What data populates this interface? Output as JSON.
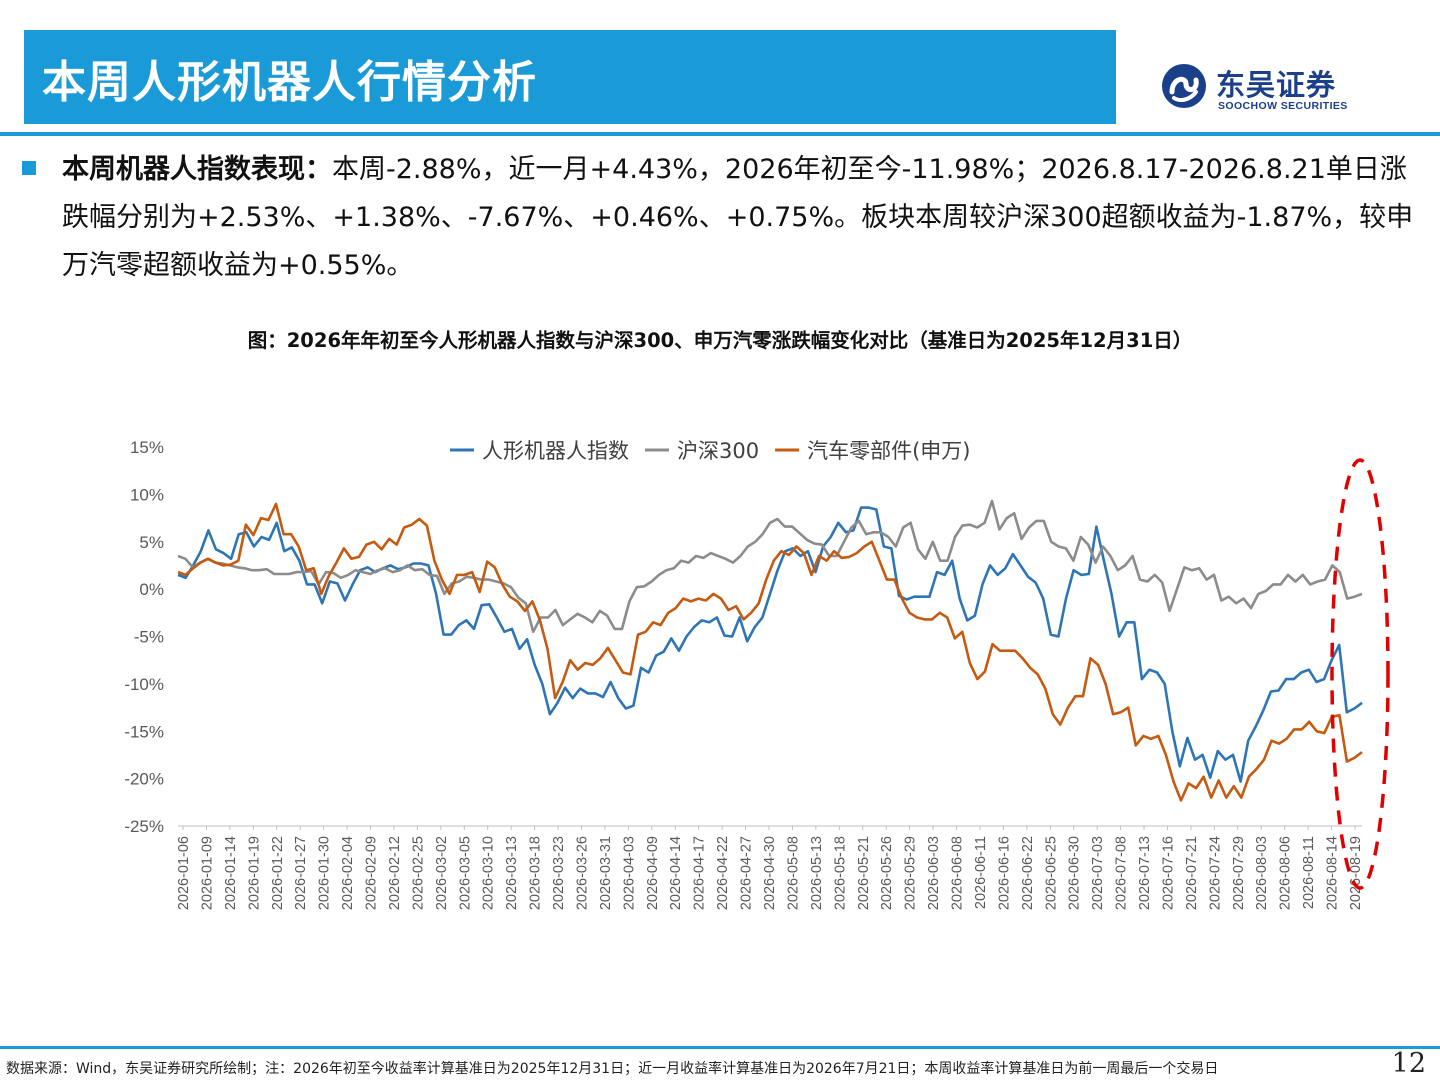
{
  "header": {
    "title": "本周人形机器人行情分析",
    "logo_cn": "东吴证券",
    "logo_en": "SOOCHOW SECURITIES"
  },
  "summary": {
    "label": "本周机器人指数表现：",
    "text": "本周-2.88%，近一月+4.43%，2026年初至今-11.98%；2026.8.17-2026.8.21单日涨跌幅分别为+2.53%、+1.38%、-7.67%、+0.46%、+0.75%。板块本周较沪深300超额收益为-1.87%，较申万汽零超额收益为+0.55%。"
  },
  "figure_caption": "图：2026年年初至今人形机器人指数与沪深300、申万汽零涨跌幅变化对比（基准日为2025年12月31日）",
  "footer": {
    "source": "数据来源：Wind，东吴证券研究所绘制；注：2026年初至今收益率计算基准日为2025年12月31日；近一月收益率计算基准日为2026年7月21日；本周收益率计算基准日为前一周最后一个交易日",
    "page": "12"
  },
  "colors": {
    "brand": "#1a9ad6",
    "robot": "#2e75b6",
    "hs300": "#8c8c8c",
    "auto": "#c55a11",
    "highlight": "#e00000"
  },
  "chart_data": {
    "type": "line",
    "y_unit": "%",
    "ylim": [
      -25,
      15
    ],
    "yticks": [
      15,
      10,
      5,
      0,
      -5,
      -10,
      -15,
      -20,
      -25
    ],
    "ytick_labels": [
      "15%",
      "10%",
      "5%",
      "0%",
      "-5%",
      "-10%",
      "-15%",
      "-20%",
      "-25%"
    ],
    "legend_position": "top",
    "grid": false,
    "xtick_labels": [
      "2026-01-06",
      "2026-01-09",
      "2026-01-14",
      "2026-01-19",
      "2026-01-22",
      "2026-01-27",
      "2026-01-30",
      "2026-02-04",
      "2026-02-09",
      "2026-02-12",
      "2026-02-25",
      "2026-03-02",
      "2026-03-05",
      "2026-03-10",
      "2026-03-13",
      "2026-03-18",
      "2026-03-23",
      "2026-03-26",
      "2026-03-31",
      "2026-04-03",
      "2026-04-09",
      "2026-04-14",
      "2026-04-17",
      "2026-04-22",
      "2026-04-27",
      "2026-04-30",
      "2026-05-08",
      "2026-05-13",
      "2026-05-18",
      "2026-05-21",
      "2026-05-26",
      "2026-05-29",
      "2026-06-03",
      "2026-06-08",
      "2026-06-11",
      "2026-06-16",
      "2026-06-22",
      "2026-06-25",
      "2026-06-30",
      "2026-07-03",
      "2026-07-08",
      "2026-07-13",
      "2026-07-16",
      "2026-07-21",
      "2026-07-24",
      "2026-07-29",
      "2026-08-03",
      "2026-08-06",
      "2026-08-11",
      "2026-08-14",
      "2026-08-19"
    ],
    "series": [
      {
        "name": "人形机器人指数",
        "color_key": "robot",
        "values": [
          1.5,
          1.2,
          2.5,
          4,
          6.2,
          4.2,
          3.8,
          3.2,
          5.8,
          6,
          4.5,
          5.5,
          5.2,
          7,
          4,
          4.4,
          3,
          0.5,
          0.5,
          -1.5,
          0.8,
          0.6,
          -1.2,
          0.5,
          2,
          2.3,
          1.8,
          2.2,
          2.5,
          2.1,
          2.3,
          2.7,
          2.7,
          2.5,
          -0.5,
          -4.8,
          -4.8,
          -3.8,
          -3.3,
          -4.2,
          -1.7,
          -1.6,
          -3,
          -4.5,
          -4.2,
          -6.3,
          -5.3,
          -8,
          -10,
          -13.2,
          -12,
          -10.4,
          -11.5,
          -10.5,
          -11,
          -11,
          -11.4,
          -9.8,
          -11.5,
          -12.6,
          -12.3,
          -8.3,
          -8.8,
          -7,
          -6.6,
          -5.2,
          -6.5,
          -5,
          -4,
          -3.3,
          -3.5,
          -3,
          -4.9,
          -5,
          -3,
          -5.5,
          -4,
          -3,
          -0.5,
          2,
          4,
          4.3,
          3.5,
          4,
          1.8,
          4.5,
          5.5,
          7,
          6,
          6.2,
          8.6,
          8.6,
          8.4,
          4.5,
          4.3,
          -0.7,
          -1.1,
          -0.8,
          -0.8,
          -0.8,
          1.8,
          1.5,
          3,
          -1,
          -3.3,
          -2.8,
          0.5,
          2.5,
          1.5,
          2.2,
          3.7,
          2.5,
          1.3,
          0.7,
          -1,
          -4.8,
          -5,
          -1,
          2,
          1.5,
          1.6,
          6.6,
          3,
          -0.5,
          -5,
          -3.5,
          -3.5,
          -9.5,
          -8.5,
          -8.8,
          -10,
          -15,
          -18.7,
          -15.7,
          -18,
          -17.5,
          -19.9,
          -17.1,
          -18,
          -17.5,
          -20.3,
          -16,
          -14.5,
          -12.8,
          -10.8,
          -10.7,
          -9.5,
          -9.5,
          -8.8,
          -8.5,
          -9.8,
          -9.5,
          -7.5,
          -5.9,
          -13,
          -12.6,
          -12
        ]
      },
      {
        "name": "沪深300",
        "color_key": "hs300",
        "values": [
          3.5,
          3.2,
          2.3,
          2.8,
          3.2,
          2.8,
          2.7,
          2.5,
          2.3,
          2.2,
          2,
          2,
          2.1,
          1.6,
          1.6,
          1.6,
          1.8,
          1.8,
          1.9,
          0.5,
          1.8,
          1.7,
          1.2,
          1.5,
          2,
          1.8,
          1.6,
          2,
          2.2,
          1.8,
          2,
          2.5,
          2,
          2.1,
          1.5,
          1.4,
          -0.5,
          0.6,
          0.8,
          1.3,
          1.2,
          1,
          1,
          0.8,
          0.6,
          0.2,
          -0.9,
          -1.5,
          -4.5,
          -3,
          -3,
          -2.2,
          -3.8,
          -3.2,
          -2.6,
          -3,
          -3.5,
          -2.3,
          -2.8,
          -4.2,
          -4.2,
          -1.3,
          0.2,
          0.3,
          0.8,
          1.5,
          2,
          2.2,
          3,
          2.8,
          3.5,
          3.3,
          3.8,
          3.5,
          3.2,
          2.8,
          3.5,
          4.5,
          5,
          5.8,
          7,
          7.4,
          6.6,
          6.6,
          5.9,
          5.2,
          4.8,
          4.7,
          3.5,
          3.5,
          5,
          6.5,
          7.2,
          5.8,
          6,
          6,
          5.5,
          4.5,
          6.5,
          7,
          4.2,
          3.2,
          5,
          3,
          3,
          5.5,
          6.7,
          6.8,
          6.5,
          7,
          9.3,
          6.3,
          7.5,
          8,
          5.3,
          6.5,
          7.2,
          7.2,
          5,
          4.5,
          4.3,
          3,
          5.5,
          4.7,
          2.8,
          4.5,
          3.5,
          2,
          2.5,
          3.5,
          1,
          0.8,
          1.5,
          0.7,
          -2.3,
          0,
          2.3,
          2,
          2.2,
          1,
          1.5,
          -1.2,
          -0.8,
          -1.5,
          -1,
          -2,
          -0.5,
          -0.2,
          0.5,
          0.5,
          1.5,
          0.8,
          1.5,
          0.5,
          0.8,
          1,
          2.5,
          1.8,
          -1,
          -0.8,
          -0.5
        ]
      },
      {
        "name": "汽车零部件(申万)",
        "color_key": "auto",
        "values": [
          1.8,
          1.5,
          2.2,
          2.8,
          3.2,
          2.8,
          2.5,
          2.6,
          3,
          6.8,
          5.7,
          7.5,
          7.3,
          9,
          5.8,
          5.8,
          4.5,
          2,
          2.2,
          -0.5,
          1.4,
          2.8,
          4.3,
          3.2,
          3.4,
          4.7,
          5,
          4.2,
          5.3,
          4.7,
          6.5,
          6.8,
          7.4,
          6.7,
          3,
          1,
          -0.5,
          1.5,
          1.5,
          1.8,
          -0.3,
          2.9,
          2.3,
          0.5,
          -0.8,
          -1.3,
          -2.3,
          -1.3,
          -3.3,
          -6.3,
          -11.5,
          -9.8,
          -7.5,
          -8.5,
          -7.8,
          -8,
          -7.3,
          -6.2,
          -7.5,
          -8.8,
          -9,
          -4.8,
          -4.5,
          -3.5,
          -3.8,
          -2.5,
          -2,
          -1,
          -1.3,
          -1,
          -1.2,
          -0.5,
          -1,
          -2.2,
          -1.8,
          -3.2,
          -2.5,
          -1.5,
          1,
          3,
          4,
          3.6,
          4.5,
          3.8,
          1.5,
          3.5,
          3,
          4,
          3.3,
          3.4,
          3.8,
          4.5,
          5,
          3,
          1,
          1,
          -1,
          -2.5,
          -3,
          -3.2,
          -3.2,
          -2.5,
          -3,
          -5.2,
          -4.5,
          -7.8,
          -9.5,
          -8.7,
          -5.8,
          -6.5,
          -6.5,
          -6.5,
          -7.3,
          -8.3,
          -9,
          -10.5,
          -13.2,
          -14.3,
          -12.5,
          -11.3,
          -11.3,
          -7.3,
          -8,
          -10,
          -13.2,
          -13,
          -12.5,
          -16.5,
          -15.5,
          -15.8,
          -15.5,
          -17.5,
          -20.3,
          -22.3,
          -20.5,
          -21,
          -19.8,
          -22,
          -20.2,
          -22,
          -20.8,
          -22,
          -19.8,
          -19,
          -18,
          -16,
          -16.3,
          -15.8,
          -14.8,
          -14.8,
          -14,
          -15,
          -15.2,
          -13.5,
          -13.3,
          -18.2,
          -17.8,
          -17.2
        ]
      }
    ]
  }
}
